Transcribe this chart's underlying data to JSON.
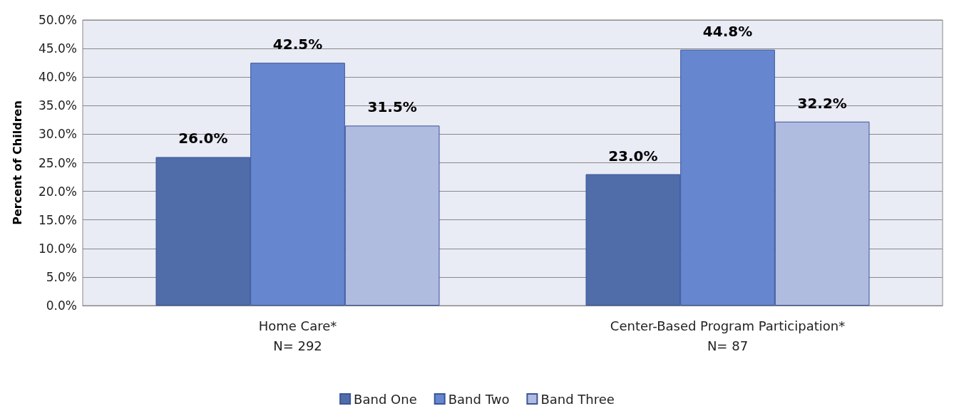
{
  "chart_data": {
    "type": "bar",
    "ylabel": "Percent of Children",
    "categories": [
      "Home Care*\nN= 292",
      "Center-Based Program Participation*\nN= 87"
    ],
    "series": [
      {
        "name": "Band One",
        "color": "#506ca9",
        "values": [
          26.0,
          23.0
        ],
        "value_labels": [
          "26.0%",
          "23.0%"
        ]
      },
      {
        "name": "Band Two",
        "color": "#6687d0",
        "values": [
          42.5,
          44.8
        ],
        "value_labels": [
          "42.5%",
          "44.8%"
        ]
      },
      {
        "name": "Band Three",
        "color": "#b0bbe0",
        "values": [
          31.5,
          32.2
        ],
        "value_labels": [
          "31.5%",
          "32.2%"
        ]
      }
    ],
    "ylim": [
      0,
      50
    ],
    "yticks": [
      {
        "value": 0,
        "label": "0.0%"
      },
      {
        "value": 5,
        "label": "5.0%"
      },
      {
        "value": 10,
        "label": "10.0%"
      },
      {
        "value": 15,
        "label": "15.0%"
      },
      {
        "value": 20,
        "label": "20.0%"
      },
      {
        "value": 25,
        "label": "25.0%"
      },
      {
        "value": 30,
        "label": "30.0%"
      },
      {
        "value": 35,
        "label": "35.0%"
      },
      {
        "value": 40,
        "label": "40.0%"
      },
      {
        "value": 45,
        "label": "45.0%"
      },
      {
        "value": 50,
        "label": "50.0%"
      }
    ],
    "grid": "y",
    "legend": "bottom"
  }
}
